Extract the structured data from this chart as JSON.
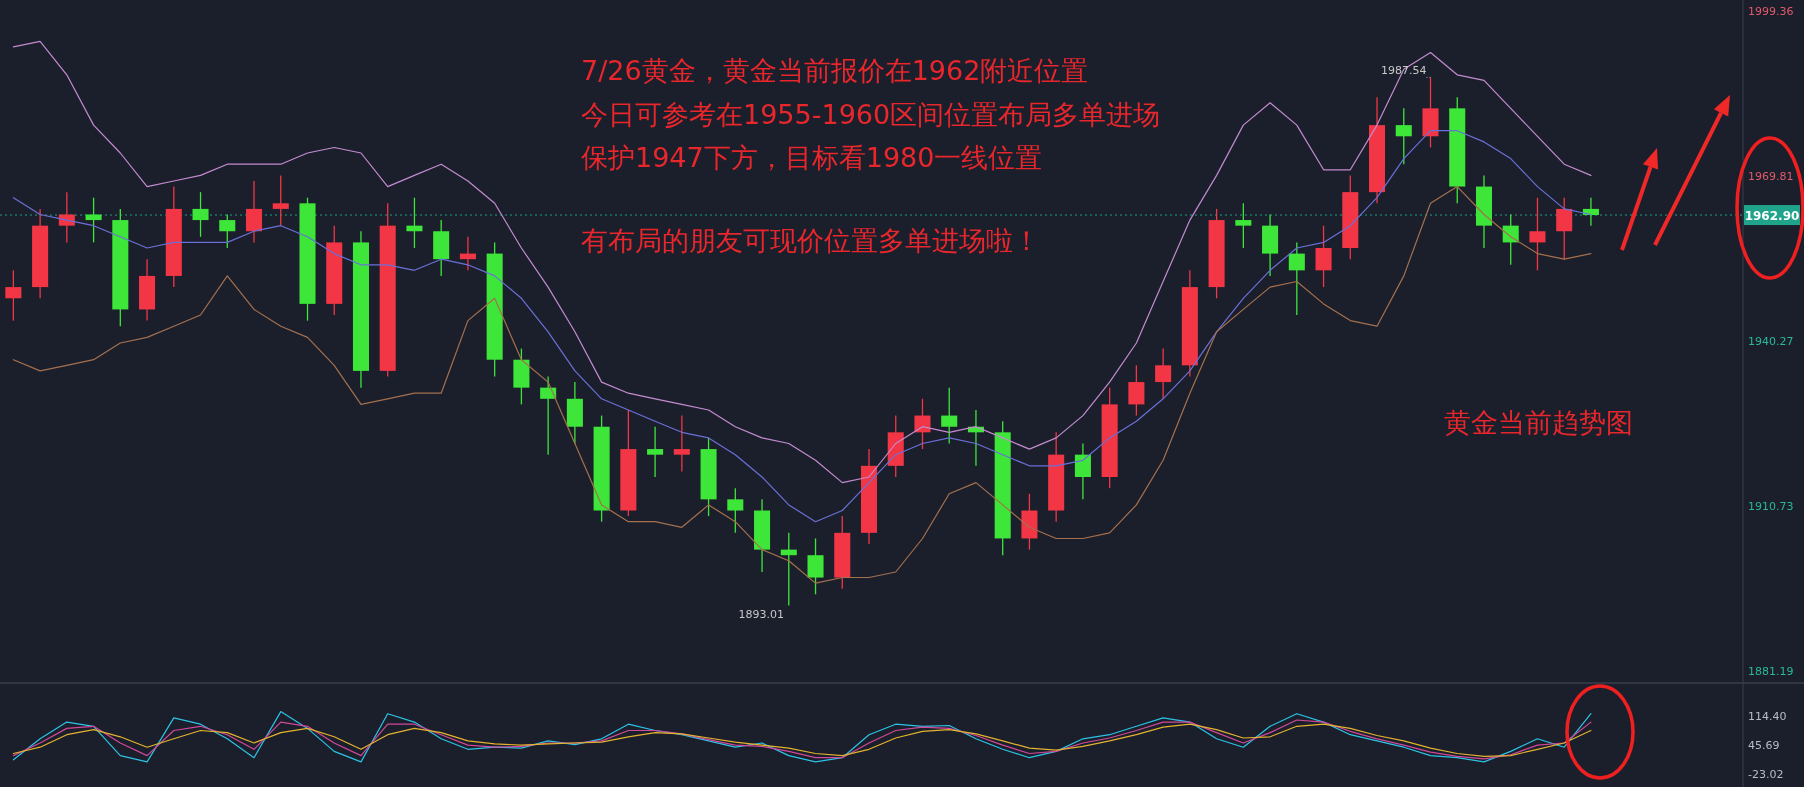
{
  "chart_data": [
    {
      "type": "candlestick",
      "categories": [
        null,
        null,
        null,
        null,
        null,
        null,
        null,
        null,
        null,
        null,
        null,
        null,
        null,
        null,
        null,
        null,
        null,
        null,
        null,
        null,
        null,
        null,
        null,
        null,
        null,
        null,
        null,
        null,
        null,
        null,
        null,
        null,
        null,
        null,
        null,
        null,
        null,
        null,
        null,
        null,
        null,
        null,
        null,
        null,
        null,
        null,
        null,
        null,
        null,
        null,
        null,
        null,
        null,
        null,
        null,
        null,
        null,
        null,
        null,
        null,
        null,
        null,
        null,
        null,
        null
      ],
      "ohlc": [
        [
          1948,
          1953,
          1944,
          1950
        ],
        [
          1950,
          1964,
          1948,
          1961
        ],
        [
          1961,
          1967,
          1958,
          1963
        ],
        [
          1963,
          1966,
          1958,
          1962
        ],
        [
          1962,
          1964,
          1943,
          1946
        ],
        [
          1946,
          1955,
          1944,
          1952
        ],
        [
          1952,
          1968,
          1950,
          1964
        ],
        [
          1964,
          1967,
          1959,
          1962
        ],
        [
          1962,
          1963,
          1957,
          1960
        ],
        [
          1960,
          1969,
          1958,
          1964
        ],
        [
          1964,
          1970,
          1961,
          1965
        ],
        [
          1965,
          1966,
          1944,
          1947
        ],
        [
          1947,
          1961,
          1945,
          1958
        ],
        [
          1958,
          1960,
          1932,
          1935
        ],
        [
          1935,
          1965,
          1934,
          1961
        ],
        [
          1961,
          1966,
          1957,
          1960
        ],
        [
          1960,
          1962,
          1952,
          1955
        ],
        [
          1955,
          1959,
          1953,
          1956
        ],
        [
          1956,
          1958,
          1934,
          1937
        ],
        [
          1937,
          1939,
          1929,
          1932
        ],
        [
          1932,
          1934,
          1920,
          1930
        ],
        [
          1930,
          1933,
          1922,
          1925
        ],
        [
          1925,
          1927,
          1908,
          1910
        ],
        [
          1910,
          1928,
          1909,
          1921
        ],
        [
          1921,
          1925,
          1916,
          1920
        ],
        [
          1920,
          1927,
          1917,
          1921
        ],
        [
          1921,
          1923,
          1909,
          1912
        ],
        [
          1912,
          1914,
          1906,
          1910
        ],
        [
          1910,
          1912,
          1899,
          1903
        ],
        [
          1903,
          1906,
          1893.01,
          1902
        ],
        [
          1902,
          1905,
          1895,
          1898
        ],
        [
          1898,
          1909,
          1896,
          1906
        ],
        [
          1906,
          1921,
          1904,
          1918
        ],
        [
          1918,
          1927,
          1916,
          1924
        ],
        [
          1924,
          1930,
          1921,
          1927
        ],
        [
          1927,
          1932,
          1922,
          1925
        ],
        [
          1925,
          1928,
          1918,
          1924
        ],
        [
          1924,
          1926,
          1902,
          1905
        ],
        [
          1905,
          1913,
          1903,
          1910
        ],
        [
          1910,
          1924,
          1908,
          1920
        ],
        [
          1920,
          1922,
          1912,
          1916
        ],
        [
          1916,
          1932,
          1914,
          1929
        ],
        [
          1929,
          1936,
          1927,
          1933
        ],
        [
          1933,
          1939,
          1930,
          1936
        ],
        [
          1936,
          1953,
          1934,
          1950
        ],
        [
          1950,
          1964,
          1948,
          1962
        ],
        [
          1962,
          1965,
          1957,
          1961
        ],
        [
          1961,
          1963,
          1952,
          1956
        ],
        [
          1956,
          1958,
          1945,
          1953
        ],
        [
          1953,
          1961,
          1950,
          1957
        ],
        [
          1957,
          1970,
          1955,
          1967
        ],
        [
          1967,
          1984,
          1965,
          1979
        ],
        [
          1979,
          1982,
          1972,
          1977
        ],
        [
          1977,
          1987.54,
          1975,
          1982
        ],
        [
          1982,
          1984,
          1965,
          1968
        ],
        [
          1968,
          1970,
          1957,
          1961
        ],
        [
          1961,
          1963,
          1954,
          1958
        ],
        [
          1958,
          1966,
          1953,
          1960
        ],
        [
          1960,
          1966,
          1955,
          1964
        ],
        [
          1964,
          1966,
          1961,
          1962.9
        ],
        null,
        null,
        null,
        null,
        null
      ],
      "series": [
        {
          "type": "line",
          "color": "#c48bd0",
          "values": [
            1993,
            1994,
            1988,
            1979,
            1974,
            1968,
            1969,
            1970,
            1972,
            1972,
            1972,
            1974,
            1975,
            1974,
            1968,
            1970,
            1972,
            1969,
            1965,
            1957,
            1950,
            1942,
            1933,
            1931,
            1930,
            1929,
            1928,
            1925,
            1923,
            1922,
            1919,
            1915,
            1916,
            1922,
            1925,
            1924,
            1925,
            1923,
            1921,
            1923,
            1927,
            1933,
            1940,
            1951,
            1962,
            1970,
            1979,
            1983,
            1979,
            1971,
            1971,
            1979,
            1989,
            1992,
            1988,
            1987,
            1982,
            1977,
            1972,
            1970,
            null,
            null,
            null,
            null,
            null
          ]
        },
        {
          "type": "line",
          "color": "#6a70d8",
          "values": [
            1966,
            1963,
            1962,
            1961,
            1959,
            1957,
            1958,
            1958,
            1958,
            1960,
            1961,
            1959,
            1956,
            1954,
            1954,
            1953,
            1955,
            1954,
            1952,
            1948,
            1942,
            1935,
            1930,
            1928,
            1926,
            1924,
            1923,
            1920,
            1916,
            1911,
            1908,
            1910,
            1915,
            1920,
            1922,
            1923,
            1922,
            1920,
            1918,
            1918,
            1919,
            1923,
            1926,
            1930,
            1935,
            1942,
            1948,
            1953,
            1957,
            1958,
            1961,
            1966,
            1973,
            1978,
            1978,
            1976,
            1973,
            1968,
            1964,
            1963,
            null,
            null,
            null,
            null,
            null
          ]
        },
        {
          "type": "line",
          "color": "#a5704e",
          "values": [
            1937,
            1935,
            1936,
            1937,
            1940,
            1941,
            1943,
            1945,
            1952,
            1946,
            1943,
            1941,
            1936,
            1929,
            1930,
            1931,
            1931,
            1944,
            1948,
            1937,
            1933,
            1922,
            1911,
            1908,
            1908,
            1907,
            1911,
            1908,
            1903,
            1901,
            1897,
            1898,
            1898,
            1899,
            1905,
            1913,
            1915,
            1911,
            1907,
            1905,
            1905,
            1906,
            1911,
            1919,
            1931,
            1942,
            1946,
            1950,
            1951,
            1947,
            1944,
            1943,
            1952,
            1965,
            1968,
            1963,
            1959,
            1956,
            1955,
            1956,
            null,
            null,
            null,
            null,
            null
          ]
        }
      ],
      "ylim": [
        1879.3,
        2001.4
      ],
      "yticks": [
        1999.36,
        1969.81,
        1940.27,
        1910.73,
        1881.19
      ],
      "tick_labels": "y",
      "ref_lines": [
        {
          "axis": "y",
          "value": 1962.9,
          "label": "1962.90",
          "color": "#1fa38a",
          "line_style": "dotted"
        }
      ],
      "annotations": [
        "7/26黄金，黄金当前报价在1962附近位置",
        "今日可参考在1955-1960区间位置布局多单进场",
        "保护1947下方，目标看1980一线位置",
        "有布局的朋友可现价位置多单进场啦！",
        "黄金当前趋势图",
        {
          "text": "1987.54",
          "y": 1987.54
        },
        "1893.01"
      ]
    },
    {
      "type": "line",
      "categories": [
        null,
        null,
        null,
        null,
        null,
        null,
        null,
        null,
        null,
        null,
        null,
        null,
        null,
        null,
        null,
        null,
        null,
        null,
        null,
        null,
        null,
        null,
        null,
        null,
        null,
        null,
        null,
        null,
        null,
        null,
        null,
        null,
        null,
        null,
        null,
        null,
        null,
        null,
        null,
        null,
        null,
        null,
        null,
        null,
        null,
        null,
        null,
        null,
        null,
        null,
        null,
        null,
        null,
        null,
        null,
        null,
        null,
        null,
        null,
        null,
        null,
        null,
        null,
        null,
        null
      ],
      "series": [
        {
          "color": "#2cc3e6",
          "values": [
            10,
            60,
            100,
            90,
            20,
            5,
            110,
            95,
            60,
            15,
            125,
            85,
            30,
            5,
            120,
            100,
            60,
            35,
            40,
            38,
            55,
            46,
            60,
            95,
            80,
            70,
            55,
            40,
            50,
            20,
            5,
            15,
            70,
            95,
            90,
            92,
            60,
            35,
            15,
            30,
            60,
            70,
            90,
            110,
            100,
            60,
            40,
            90,
            120,
            100,
            70,
            55,
            40,
            20,
            15,
            5,
            30,
            60,
            40,
            120,
            null,
            null,
            null,
            null,
            null
          ]
        },
        {
          "color": "#d0489a",
          "values": [
            20,
            50,
            85,
            90,
            50,
            20,
            80,
            90,
            70,
            35,
            100,
            90,
            50,
            20,
            95,
            95,
            70,
            45,
            40,
            42,
            50,
            50,
            55,
            80,
            80,
            72,
            58,
            45,
            42,
            30,
            15,
            15,
            50,
            80,
            88,
            85,
            68,
            45,
            25,
            30,
            50,
            62,
            80,
            100,
            100,
            75,
            50,
            75,
            105,
            100,
            78,
            60,
            45,
            28,
            18,
            12,
            22,
            45,
            50,
            100,
            null,
            null,
            null,
            null,
            null
          ]
        },
        {
          "color": "#e3b22e",
          "values": [
            25,
            40,
            70,
            82,
            65,
            40,
            60,
            80,
            75,
            50,
            75,
            85,
            65,
            35,
            70,
            85,
            75,
            55,
            48,
            45,
            48,
            50,
            52,
            65,
            75,
            72,
            62,
            52,
            45,
            38,
            25,
            20,
            35,
            62,
            78,
            82,
            72,
            55,
            38,
            33,
            42,
            55,
            70,
            88,
            95,
            82,
            62,
            65,
            90,
            95,
            85,
            68,
            55,
            38,
            25,
            18,
            20,
            35,
            50,
            80,
            null,
            null,
            null,
            null,
            null
          ]
        }
      ],
      "ylim": [
        -55,
        191
      ],
      "yticks": [
        {
          "value": 114.4,
          "label": "114.40"
        },
        {
          "value": 45.69,
          "label": "45.69"
        },
        {
          "value": -23.02,
          "label": "-23.02"
        }
      ],
      "tick_labels": "y"
    }
  ]
}
